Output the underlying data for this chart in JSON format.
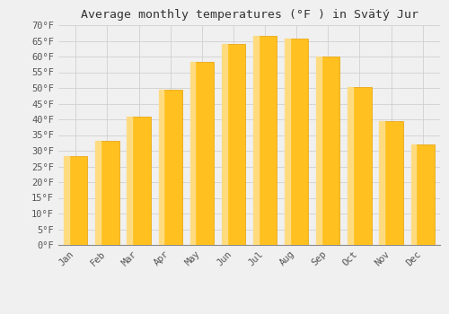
{
  "title": "Average monthly temperatures (°F ) in Svätý Jur",
  "months": [
    "Jan",
    "Feb",
    "Mar",
    "Apr",
    "May",
    "Jun",
    "Jul",
    "Aug",
    "Sep",
    "Oct",
    "Nov",
    "Dec"
  ],
  "values": [
    28.4,
    33.1,
    41.0,
    49.5,
    58.3,
    63.9,
    66.7,
    65.7,
    59.9,
    50.4,
    39.4,
    32.0
  ],
  "bar_color": "#FFC020",
  "bar_edge_color": "#E8A000",
  "bar_highlight_color": "#FFE090",
  "ylim": [
    0,
    70
  ],
  "yticks": [
    0,
    5,
    10,
    15,
    20,
    25,
    30,
    35,
    40,
    45,
    50,
    55,
    60,
    65,
    70
  ],
  "ytick_labels": [
    "0°F",
    "5°F",
    "10°F",
    "15°F",
    "20°F",
    "25°F",
    "30°F",
    "35°F",
    "40°F",
    "45°F",
    "50°F",
    "55°F",
    "60°F",
    "65°F",
    "70°F"
  ],
  "background_color": "#f0f0f0",
  "grid_color": "#d0d0d0",
  "title_fontsize": 9.5,
  "tick_fontsize": 7.5,
  "bar_width": 0.75
}
